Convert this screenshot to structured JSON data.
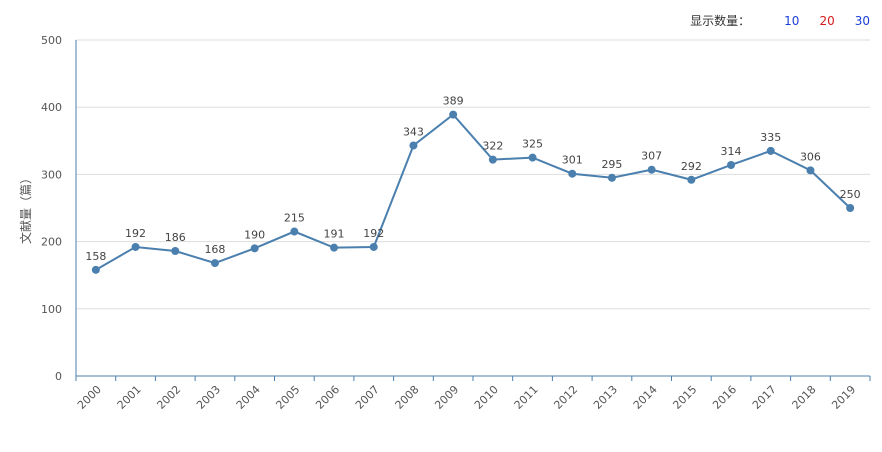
{
  "toolbar": {
    "label": "显示数量：",
    "options": [
      {
        "text": "10",
        "color": "#1a3fd6"
      },
      {
        "text": "20",
        "color": "#d61a1a"
      },
      {
        "text": "30",
        "color": "#1a3fd6"
      }
    ]
  },
  "chart_data": {
    "type": "line",
    "title": "",
    "xlabel": "",
    "ylabel": "文献量（篇）",
    "ylim": [
      0,
      500
    ],
    "yticks": [
      0,
      100,
      200,
      300,
      400,
      500
    ],
    "categories": [
      "2000",
      "2001",
      "2002",
      "2003",
      "2004",
      "2005",
      "2006",
      "2007",
      "2008",
      "2009",
      "2010",
      "2011",
      "2012",
      "2013",
      "2014",
      "2015",
      "2016",
      "2017",
      "2018",
      "2019"
    ],
    "series": [
      {
        "name": "文献量",
        "color": "#4a7fae",
        "values": [
          158,
          192,
          186,
          168,
          190,
          215,
          191,
          192,
          343,
          389,
          322,
          325,
          301,
          295,
          307,
          292,
          314,
          335,
          306,
          250
        ]
      }
    ],
    "grid": true
  }
}
